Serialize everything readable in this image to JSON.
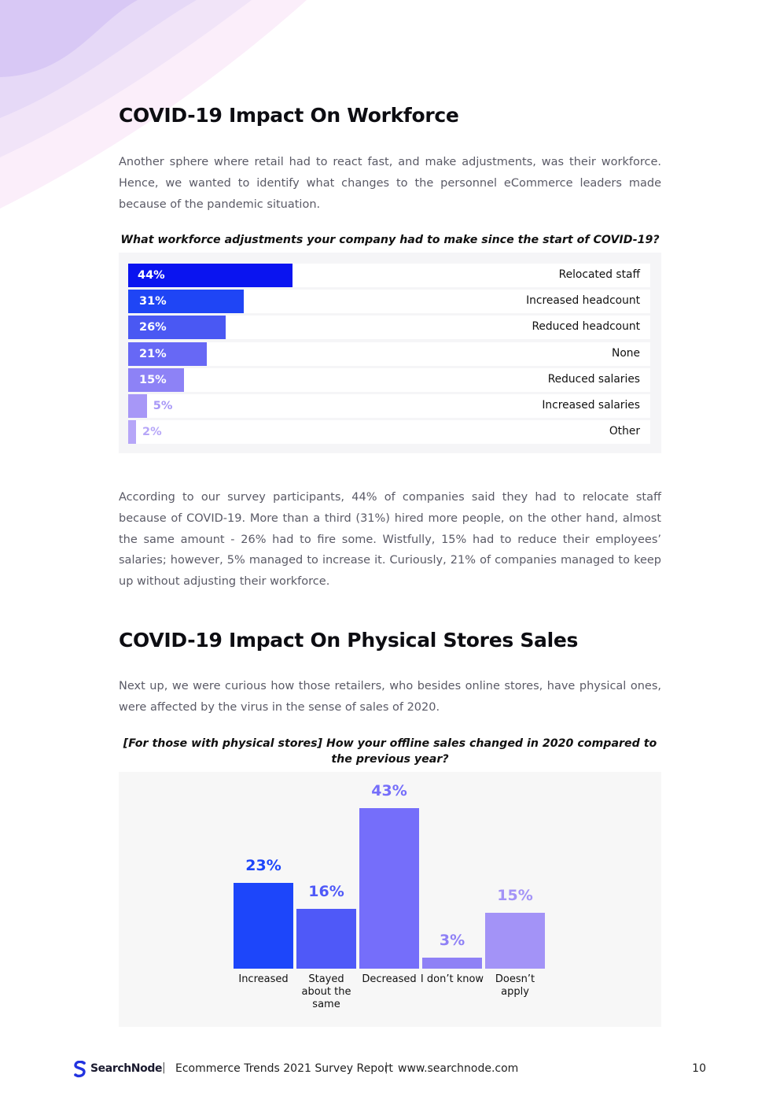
{
  "section1": {
    "title": "COVID-19 Impact On Workforce",
    "intro": "Another sphere where retail had to react fast, and make adjustments, was their workforce. Hence, we wanted to identify what changes to the personnel eCommerce leaders made because of the pandemic situation.",
    "question": "What workforce adjustments your company had to make since the start of COVID-19?",
    "summary": "According to our survey participants, 44% of companies said they had to relocate staff because of COVID-19. More than a third (31%) hired more people, on the other hand, almost the same amount - 26% had to fire some. Wistfully, 15% had to reduce their employees’ salaries; however, 5% managed to increase it. Curiously, 21% of companies managed to keep up without adjusting their workforce."
  },
  "section2": {
    "title": "COVID-19 Impact On Physical Stores Sales",
    "intro": "Next up, we were curious how those retailers, who besides online stores, have physical ones, were affected by the virus in the sense of sales of 2020.",
    "question": "[For those with physical stores] How your offline sales changed in 2020 compared to the previous year?"
  },
  "chart_data": [
    {
      "type": "bar",
      "orientation": "horizontal",
      "title": "What workforce adjustments your company had to make since the start of COVID-19?",
      "categories": [
        "Relocated staff",
        "Increased headcount",
        "Reduced headcount",
        "None",
        "Reduced salaries",
        "Increased salaries",
        "Other"
      ],
      "values": [
        44,
        31,
        26,
        21,
        15,
        5,
        2
      ],
      "value_labels": [
        "44%",
        "31%",
        "26%",
        "21%",
        "15%",
        "5%",
        "2%"
      ],
      "colors": [
        "#0a14f0",
        "#1f45f5",
        "#4a58f3",
        "#6768f5",
        "#8d82f6",
        "#a797f7",
        "#b6a6f8"
      ],
      "xlim": [
        0,
        100
      ],
      "unit": "%"
    },
    {
      "type": "bar",
      "orientation": "vertical",
      "title": "[For those with physical stores] How your offline sales changed in 2020 compared to the previous year?",
      "categories": [
        "Increased",
        "Stayed about the same",
        "Decreased",
        "I don’t know",
        "Doesn’t apply"
      ],
      "category_lines": [
        [
          "Increased"
        ],
        [
          "Stayed",
          "about the",
          "same"
        ],
        [
          "Decreased"
        ],
        [
          "I don’t know"
        ],
        [
          "Doesn’t",
          "apply"
        ]
      ],
      "values": [
        23,
        16,
        43,
        3,
        15
      ],
      "value_labels": [
        "23%",
        "16%",
        "43%",
        "3%",
        "15%"
      ],
      "colors": [
        "#1d46fa",
        "#4f59f8",
        "#756efa",
        "#8f81f6",
        "#a393f7"
      ],
      "ylim": [
        0,
        43
      ],
      "unit": "%"
    }
  ],
  "footer": {
    "brand": "SearchNode",
    "report": "Ecommerce Trends 2021 Survey Report",
    "website": "www.searchnode.com",
    "separator": "|",
    "page_number": "10"
  },
  "colors": {
    "heading": "#0d0d12",
    "body_text": "#5a5a66",
    "panel_bg": "#f5f5f7"
  }
}
